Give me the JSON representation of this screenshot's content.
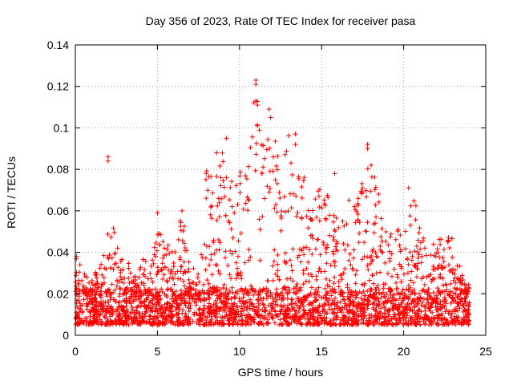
{
  "chart_data": {
    "type": "scatter",
    "title": "Day 356 of 2023, Rate Of TEC Index for receiver pasa",
    "xlabel": "GPS time / hours",
    "ylabel": "ROTI / TECUs",
    "xlim": [
      0,
      25
    ],
    "ylim": [
      0,
      0.14
    ],
    "x_ticks": [
      "0",
      "5",
      "10",
      "15",
      "20",
      "25"
    ],
    "y_ticks": [
      "0",
      "0.02",
      "0.04",
      "0.06",
      "0.08",
      "0.1",
      "0.12",
      "0.14"
    ],
    "grid": true,
    "marker": "+",
    "color": "#ff0000",
    "envelope": {
      "description_hours": [
        0,
        0.5,
        1,
        1.5,
        2,
        2.5,
        3,
        3.5,
        4,
        4.5,
        5,
        5.5,
        6,
        6.5,
        7,
        7.5,
        8,
        8.5,
        9,
        9.5,
        10,
        10.5,
        11,
        11.5,
        12,
        12.5,
        13,
        13.5,
        14,
        14.5,
        15,
        15.5,
        16,
        16.5,
        17,
        17.5,
        18,
        18.5,
        19,
        19.5,
        20,
        20.5,
        21,
        21.5,
        22,
        22.5,
        23,
        23.5,
        24
      ],
      "peak_roti": [
        0.041,
        0.03,
        0.028,
        0.034,
        0.052,
        0.054,
        0.032,
        0.04,
        0.038,
        0.034,
        0.051,
        0.046,
        0.04,
        0.06,
        0.034,
        0.03,
        0.082,
        0.074,
        0.095,
        0.075,
        0.08,
        0.085,
        0.123,
        0.093,
        0.108,
        0.075,
        0.097,
        0.085,
        0.082,
        0.069,
        0.079,
        0.065,
        0.055,
        0.062,
        0.075,
        0.074,
        0.092,
        0.068,
        0.052,
        0.055,
        0.045,
        0.071,
        0.054,
        0.038,
        0.048,
        0.046,
        0.055,
        0.031,
        0.024
      ]
    },
    "outliers": [
      {
        "x": 2.0,
        "y": 0.086
      },
      {
        "x": 2.0,
        "y": 0.084
      },
      {
        "x": 11.0,
        "y": 0.123
      },
      {
        "x": 11.0,
        "y": 0.121
      },
      {
        "x": 11.0,
        "y": 0.113
      },
      {
        "x": 11.1,
        "y": 0.111
      },
      {
        "x": 11.8,
        "y": 0.109
      },
      {
        "x": 11.9,
        "y": 0.105
      },
      {
        "x": 13.4,
        "y": 0.097
      },
      {
        "x": 13.4,
        "y": 0.092
      },
      {
        "x": 17.8,
        "y": 0.092
      },
      {
        "x": 17.8,
        "y": 0.09
      },
      {
        "x": 9.2,
        "y": 0.095
      },
      {
        "x": 8.6,
        "y": 0.088
      },
      {
        "x": 20.3,
        "y": 0.071
      },
      {
        "x": 6.5,
        "y": 0.06
      },
      {
        "x": 5.0,
        "y": 0.059
      },
      {
        "x": 15.8,
        "y": 0.078
      }
    ]
  }
}
